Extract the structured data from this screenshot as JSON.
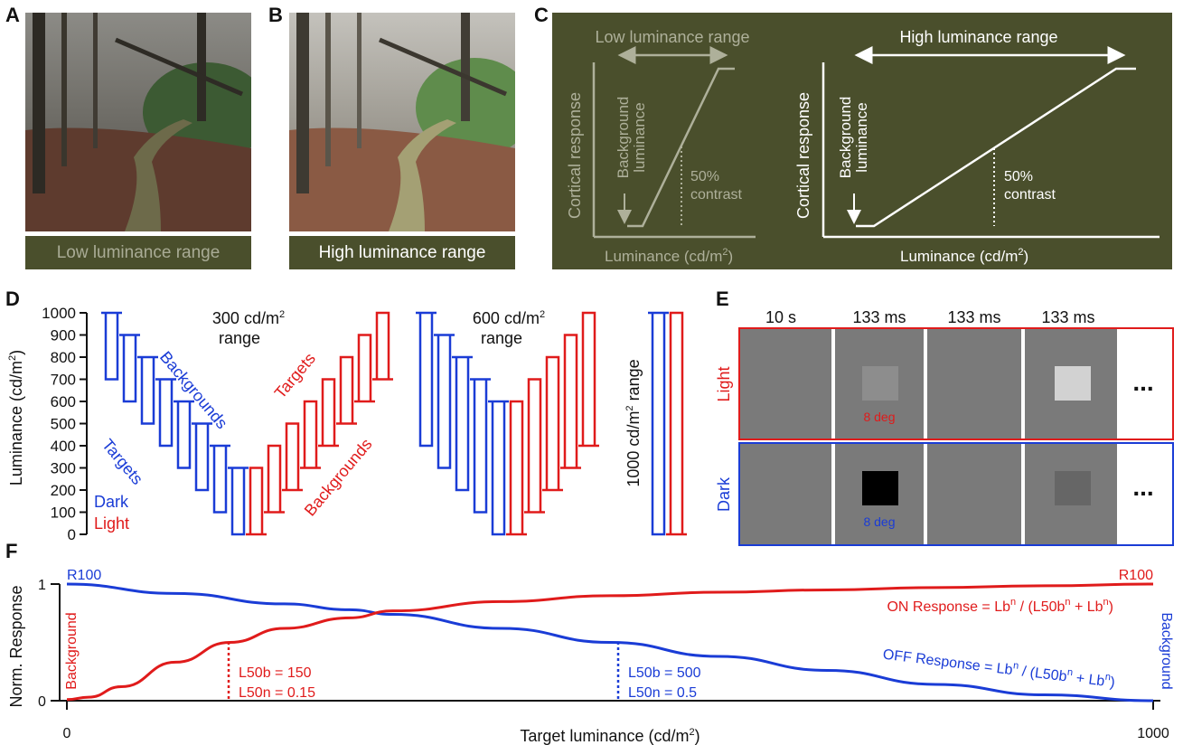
{
  "panels": {
    "a": "A",
    "b": "B",
    "c": "C",
    "d": "D",
    "e": "E",
    "f": "F"
  },
  "captions": {
    "a": "Low luminance range",
    "b": "High luminance range"
  },
  "panel_c": {
    "low_range": "Low luminance range",
    "high_range": "High luminance range",
    "ylabel": "Cortical response",
    "xlabel": "Luminance (cd/m",
    "xlabel_sup": "2",
    "xlabel_end": ")",
    "bg_line1": "Background",
    "bg_line2": "luminance",
    "contrast_line1": "50%",
    "contrast_line2": "contrast"
  },
  "panel_d": {
    "ylabel": "Luminance (cd/m",
    "ylabel_sup": "2",
    "ylabel_end": ")",
    "yticks": [
      "0",
      "100",
      "200",
      "300",
      "400",
      "500",
      "600",
      "700",
      "800",
      "900",
      "1000"
    ],
    "range300_a": "300 cd/m",
    "range300_b": "range",
    "range600_a": "600 cd/m",
    "range600_b": "range",
    "range1000": "1000 cd/m",
    "range1000_end": " range",
    "sup": "2",
    "backgrounds": "Backgrounds",
    "targets": "Targets",
    "dark": "Dark",
    "light": "Light",
    "colors": {
      "dark": "#1a3cd6",
      "light": "#e01b1b"
    }
  },
  "panel_e": {
    "durations": [
      "10 s",
      "133 ms",
      "133 ms",
      "133 ms"
    ],
    "light_label": "Light",
    "dark_label": "Dark",
    "size_label": "8 deg",
    "ellipsis": "..."
  },
  "panel_f": {
    "ylabel": "Norm. Response",
    "xlabel": "Target luminance (cd/m",
    "xlabel_sup": "2",
    "xlabel_end": ")",
    "xticks": [
      "0",
      "1000"
    ],
    "yticks": [
      "0",
      "1"
    ],
    "r100": "R100",
    "background": "Background",
    "on_eq": "ON Response = Lb",
    "on_eq_mid": " / (L50b",
    "on_eq_mid2": " + Lb",
    "on_eq_end": ")",
    "off_eq": "OFF Response = Lb",
    "n": "n",
    "on_l50b": "L50b = 150",
    "on_l50n": "L50n = 0.15",
    "off_l50b": "L50b = 500",
    "off_l50n": "L50n = 0.5"
  },
  "chart_data": {
    "type": "line",
    "xlabel": "Target luminance (cd/m2)",
    "ylabel": "Norm. Response",
    "xlim": [
      0,
      1000
    ],
    "ylim": [
      0,
      1
    ],
    "series": [
      {
        "name": "ON Response",
        "color": "#e01b1b",
        "x": [
          0,
          20,
          50,
          100,
          150,
          200,
          260,
          300,
          400,
          500,
          600,
          700,
          800,
          900,
          1000
        ],
        "values": [
          0.01,
          0.03,
          0.12,
          0.33,
          0.5,
          0.62,
          0.71,
          0.77,
          0.85,
          0.9,
          0.93,
          0.95,
          0.97,
          0.985,
          1.0
        ]
      },
      {
        "name": "OFF Response",
        "color": "#1a3cd6",
        "x": [
          0,
          100,
          200,
          260,
          300,
          400,
          500,
          600,
          700,
          800,
          900,
          1000
        ],
        "values": [
          1.0,
          0.92,
          0.83,
          0.78,
          0.74,
          0.62,
          0.5,
          0.38,
          0.26,
          0.14,
          0.05,
          0.0
        ]
      }
    ]
  }
}
